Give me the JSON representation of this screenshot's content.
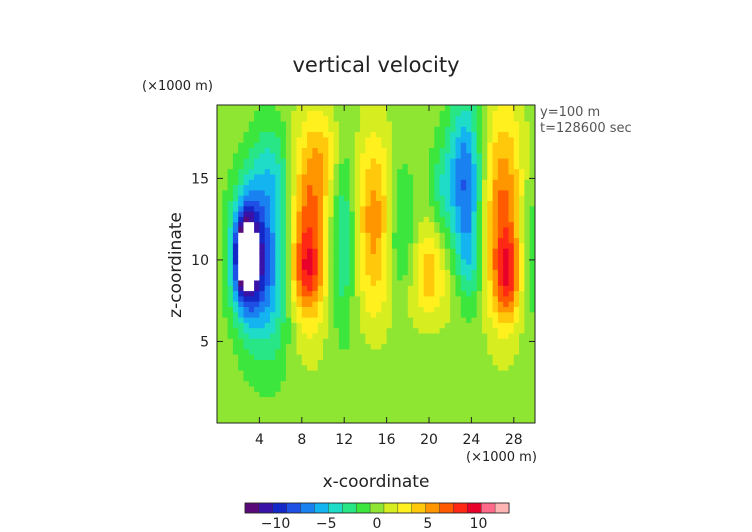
{
  "chart_data": {
    "type": "heatmap",
    "title": "vertical velocity",
    "xlabel": "x-coordinate",
    "ylabel": "z-coordinate",
    "x_unit": "(×1000 m)",
    "y_unit": "(×1000 m)",
    "annotations": [
      "y=100 m",
      "t=128600 sec"
    ],
    "xlim": [
      0,
      30
    ],
    "ylim": [
      0,
      19.5
    ],
    "xticks": [
      4,
      8,
      12,
      16,
      20,
      24,
      28
    ],
    "yticks": [
      5,
      10,
      15
    ],
    "colorbar": {
      "ticks": [
        -10,
        -5,
        0,
        5,
        10
      ],
      "tick_labels": [
        "−10",
        "−5",
        "0",
        "5",
        "10"
      ],
      "vmin": -13,
      "vmax": 13,
      "colors": [
        "#5a0a78",
        "#3a12a8",
        "#1428c8",
        "#1e50e6",
        "#1a82f0",
        "#14b4f0",
        "#1edcc8",
        "#28e686",
        "#3ce63c",
        "#8ee632",
        "#d6ee20",
        "#fff01e",
        "#ffc80a",
        "#ff9600",
        "#ff5a00",
        "#ff2814",
        "#e8002a",
        "#ff6a8a",
        "#ffb4b4"
      ]
    },
    "features": [
      {
        "x": 4.8,
        "z": 9.5,
        "amp": -6,
        "sx": 1.6,
        "sz": 3.8
      },
      {
        "x": 2.9,
        "z": 10.4,
        "amp": -10.5,
        "sx": 1.1,
        "sz": 2.6
      },
      {
        "x": 2.6,
        "z": 10.2,
        "amp": -6,
        "sx": 0.6,
        "sz": 1.6
      },
      {
        "x": 5.2,
        "z": 15.5,
        "amp": -3,
        "sx": 1.4,
        "sz": 2.2
      },
      {
        "x": 8.6,
        "z": 12.0,
        "amp": 7,
        "sx": 1.35,
        "sz": 4.2
      },
      {
        "x": 8.4,
        "z": 9.2,
        "amp": 4,
        "sx": 1.0,
        "sz": 1.6
      },
      {
        "x": 10.3,
        "z": 16.5,
        "amp": 2.5,
        "sx": 1.1,
        "sz": 2.0
      },
      {
        "x": 11.9,
        "z": 11.5,
        "amp": -4,
        "sx": 0.9,
        "sz": 4.0
      },
      {
        "x": 14.8,
        "z": 12.5,
        "amp": 5.5,
        "sx": 1.3,
        "sz": 3.8
      },
      {
        "x": 17.3,
        "z": 11.5,
        "amp": -3,
        "sx": 0.9,
        "sz": 3.2
      },
      {
        "x": 20.0,
        "z": 9.7,
        "amp": 3.8,
        "sx": 1.1,
        "sz": 1.8
      },
      {
        "x": 23.4,
        "z": 15.0,
        "amp": -7.5,
        "sx": 1.1,
        "sz": 3.5
      },
      {
        "x": 23.9,
        "z": 9.5,
        "amp": -3,
        "sx": 0.9,
        "sz": 2.3
      },
      {
        "x": 21.2,
        "z": 14.5,
        "amp": -2.5,
        "sx": 0.8,
        "sz": 2.0
      },
      {
        "x": 27.0,
        "z": 13.0,
        "amp": 6.5,
        "sx": 1.35,
        "sz": 4.5
      },
      {
        "x": 27.4,
        "z": 9.0,
        "amp": 5,
        "sx": 0.9,
        "sz": 1.8
      },
      {
        "x": 29.5,
        "z": 10.5,
        "amp": -2.5,
        "sx": 0.7,
        "sz": 3.0
      },
      {
        "x": 20.0,
        "z": 7.5,
        "amp": 1.2,
        "sx": 4.0,
        "sz": 1.5
      }
    ]
  }
}
